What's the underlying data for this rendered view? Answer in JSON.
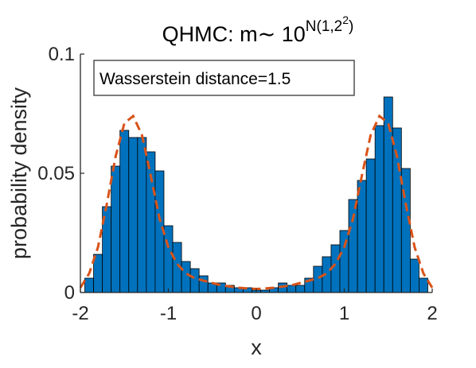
{
  "chart_data": {
    "type": "bar",
    "title": {
      "main": "QHMC: m∼ 10",
      "sup": "N(1,2",
      "sup2": "2",
      "close": ")"
    },
    "xlabel": "x",
    "ylabel": "probability density",
    "xlim": [
      -2,
      2
    ],
    "ylim": [
      0,
      0.1
    ],
    "xticks": [
      {
        "value": -2,
        "label": "-2"
      },
      {
        "value": -1,
        "label": "-1"
      },
      {
        "value": 0,
        "label": "0"
      },
      {
        "value": 1,
        "label": "1"
      },
      {
        "value": 2,
        "label": "2"
      }
    ],
    "yticks": [
      {
        "value": 0,
        "label": "0"
      },
      {
        "value": 0.05,
        "label": "0.05"
      },
      {
        "value": 0.1,
        "label": "0.1"
      }
    ],
    "annotation": "Wasserstein distance=1.5",
    "bar_color": "#0072BD",
    "curve_color": "#D95319",
    "bin_width": 0.1,
    "bin_centers": [
      -1.9,
      -1.8,
      -1.7,
      -1.6,
      -1.5,
      -1.4,
      -1.3,
      -1.2,
      -1.1,
      -1.0,
      -0.9,
      -0.8,
      -0.7,
      -0.6,
      -0.5,
      -0.4,
      -0.3,
      -0.2,
      -0.1,
      0.0,
      0.1,
      0.2,
      0.3,
      0.4,
      0.5,
      0.6,
      0.7,
      0.8,
      0.9,
      1.0,
      1.1,
      1.2,
      1.3,
      1.4,
      1.5,
      1.6,
      1.7,
      1.8,
      1.9
    ],
    "values": [
      0.006,
      0.016,
      0.036,
      0.053,
      0.068,
      0.065,
      0.065,
      0.059,
      0.051,
      0.028,
      0.021,
      0.013,
      0.01,
      0.007,
      0.004,
      0.004,
      0.003,
      0.002,
      0.002,
      0.001,
      0.001,
      0.002,
      0.004,
      0.003,
      0.003,
      0.006,
      0.011,
      0.015,
      0.02,
      0.026,
      0.039,
      0.047,
      0.056,
      0.07,
      0.082,
      0.069,
      0.052,
      0.014,
      0.006
    ],
    "curve": {
      "x": [
        -2.0,
        -1.9,
        -1.8,
        -1.7,
        -1.6,
        -1.5,
        -1.4,
        -1.3,
        -1.2,
        -1.1,
        -1.0,
        -0.9,
        -0.8,
        -0.7,
        -0.6,
        -0.5,
        -0.4,
        -0.3,
        -0.2,
        -0.1,
        0.0,
        0.1,
        0.2,
        0.3,
        0.4,
        0.5,
        0.6,
        0.7,
        0.8,
        0.9,
        1.0,
        1.1,
        1.2,
        1.3,
        1.4,
        1.5,
        1.6,
        1.7,
        1.8,
        1.9,
        2.0
      ],
      "y": [
        0.002,
        0.008,
        0.019,
        0.037,
        0.057,
        0.071,
        0.074,
        0.066,
        0.049,
        0.031,
        0.019,
        0.012,
        0.008,
        0.006,
        0.005,
        0.004,
        0.003,
        0.0025,
        0.002,
        0.0017,
        0.0015,
        0.0017,
        0.002,
        0.0025,
        0.003,
        0.004,
        0.005,
        0.006,
        0.008,
        0.012,
        0.019,
        0.031,
        0.049,
        0.066,
        0.074,
        0.071,
        0.057,
        0.037,
        0.019,
        0.008,
        0.002
      ]
    }
  }
}
